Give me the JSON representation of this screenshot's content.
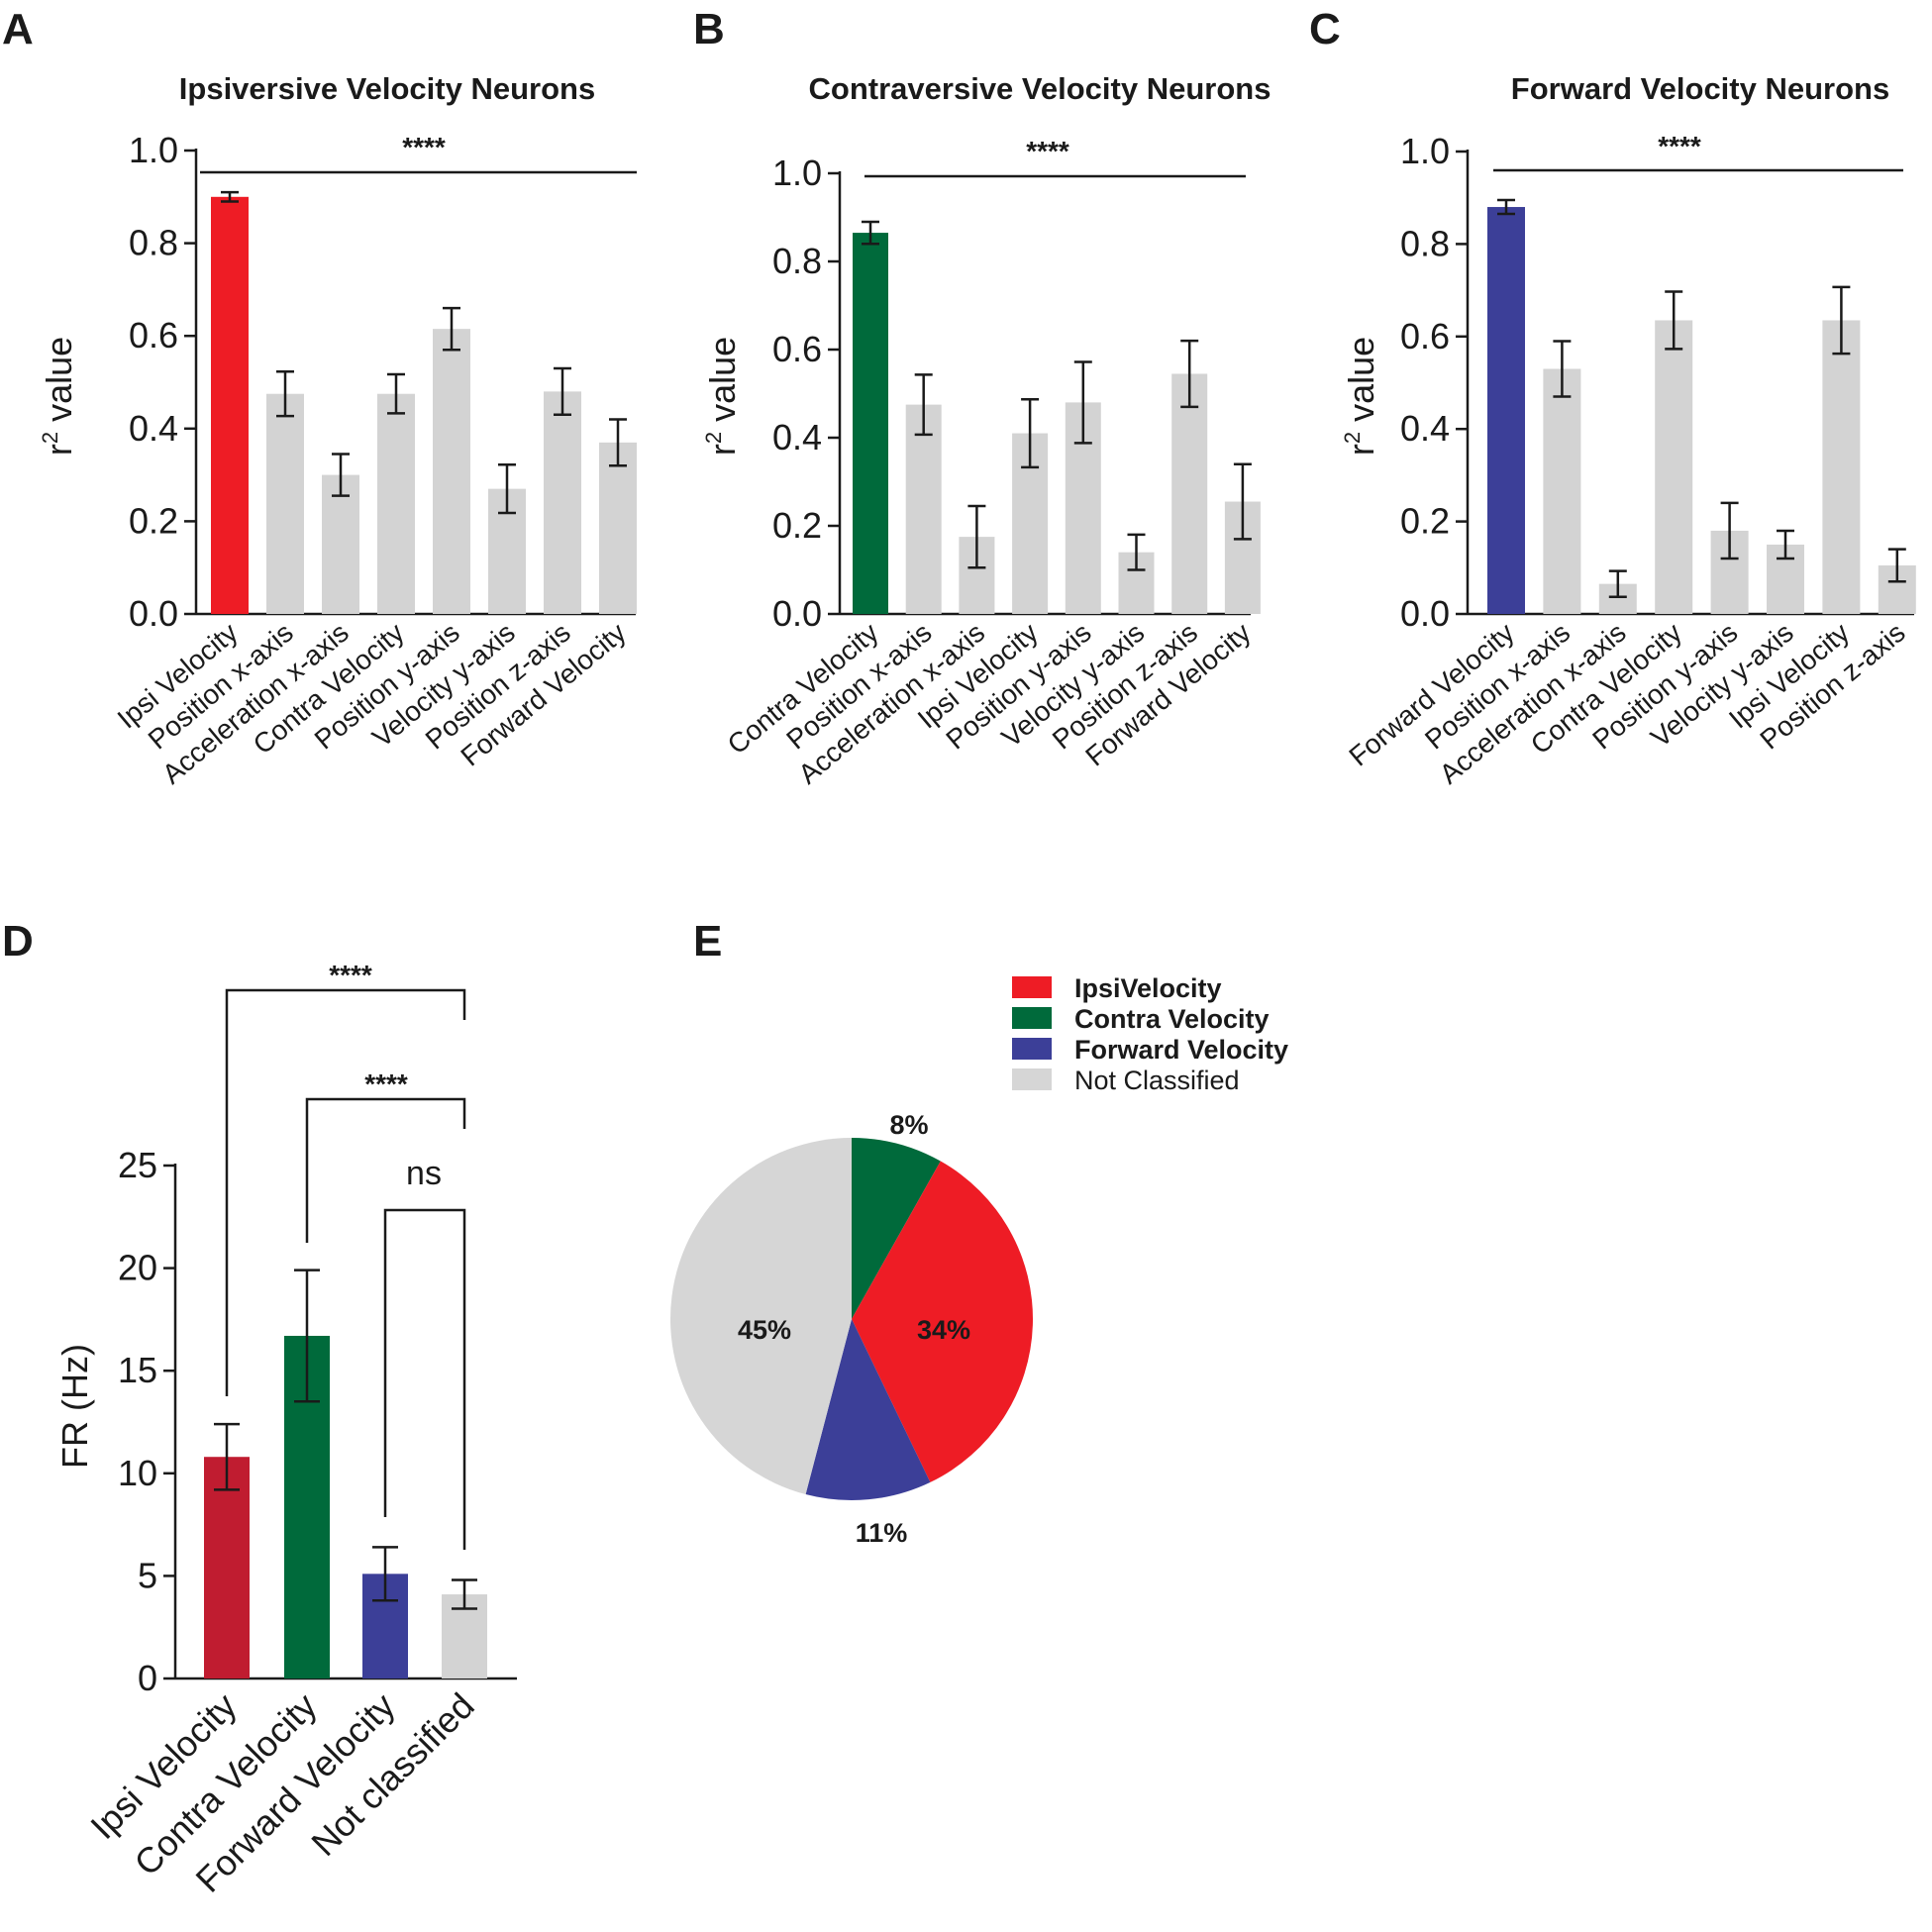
{
  "panels": {
    "A": "A",
    "B": "B",
    "C": "C",
    "D": "D",
    "E": "E"
  },
  "colors": {
    "gray": "#d3d3d3",
    "ipsi": "#ee1c25",
    "contra": "#006a3b",
    "forward": "#3c3f98",
    "ipsi_dark": "#c01c30",
    "pie_gray": "#d6d6d6",
    "pie_red": "#ee1c25"
  },
  "chart_data": [
    {
      "id": "A",
      "type": "bar",
      "title": "Ipsiversive Velocity Neurons",
      "ylabel_base": "r",
      "ylabel_sup": "2",
      "ylabel_rest": " value",
      "ylim": [
        0,
        1.0
      ],
      "yticks": [
        "0.0",
        "0.2",
        "0.4",
        "0.6",
        "0.8",
        "1.0"
      ],
      "categories": [
        "Ipsi Velocity",
        "Position x-axis",
        "Acceleration x-axis",
        "Contra Velocity",
        "Position y-axis",
        "Velocity y-axis",
        "Position z-axis",
        "Forward Velocity"
      ],
      "values": [
        0.9,
        0.475,
        0.3,
        0.475,
        0.615,
        0.27,
        0.48,
        0.37
      ],
      "errors": [
        0.01,
        0.048,
        0.045,
        0.042,
        0.045,
        0.052,
        0.05,
        0.05
      ],
      "highlight_color": "#ee1c25",
      "significance": "****"
    },
    {
      "id": "B",
      "type": "bar",
      "title": "Contraversive Velocity Neurons",
      "ylabel_base": "r",
      "ylabel_sup": "2",
      "ylabel_rest": " value",
      "ylim": [
        0,
        1.0
      ],
      "yticks": [
        "0.0",
        "0.2",
        "0.4",
        "0.6",
        "0.8",
        "1.0"
      ],
      "categories": [
        "Contra Velocity",
        "Position x-axis",
        "Acceleration x-axis",
        "Ipsi Velocity",
        "Position y-axis",
        "Velocity y-axis",
        "Position z-axis",
        "Forward Velocity"
      ],
      "values": [
        0.865,
        0.475,
        0.175,
        0.41,
        0.48,
        0.14,
        0.545,
        0.255
      ],
      "errors": [
        0.025,
        0.068,
        0.07,
        0.077,
        0.092,
        0.04,
        0.075,
        0.085
      ],
      "highlight_color": "#006a3b",
      "significance": "****"
    },
    {
      "id": "C",
      "type": "bar",
      "title": "Forward Velocity Neurons",
      "ylabel_base": "r",
      "ylabel_sup": "2",
      "ylabel_rest": " value",
      "ylim": [
        0,
        1.0
      ],
      "yticks": [
        "0.0",
        "0.2",
        "0.4",
        "0.6",
        "0.8",
        "1.0"
      ],
      "categories": [
        "Forward Velocity",
        "Position x-axis",
        "Acceleration x-axis",
        "Contra Velocity",
        "Position y-axis",
        "Velocity y-axis",
        "Ipsi Velocity",
        "Position z-axis"
      ],
      "values": [
        0.88,
        0.53,
        0.065,
        0.635,
        0.18,
        0.15,
        0.635,
        0.105
      ],
      "errors": [
        0.015,
        0.06,
        0.028,
        0.062,
        0.06,
        0.03,
        0.072,
        0.035
      ],
      "highlight_color": "#3c3f98",
      "significance": "****"
    },
    {
      "id": "D",
      "type": "bar",
      "ylabel": "FR (Hz)",
      "ylim": [
        0,
        25
      ],
      "yticks": [
        "0",
        "5",
        "10",
        "15",
        "20",
        "25"
      ],
      "categories": [
        "Ipsi Velocity",
        "Contra Velocity",
        "Forward Velocity",
        "Not classified"
      ],
      "values": [
        10.8,
        16.7,
        5.1,
        4.1
      ],
      "errors": [
        1.6,
        3.2,
        1.3,
        0.7
      ],
      "bar_colors": [
        "#c01c30",
        "#006a3b",
        "#3c3f98",
        "#d3d3d3"
      ],
      "comparisons": [
        "****",
        "****",
        "ns"
      ]
    },
    {
      "id": "E",
      "type": "pie",
      "slices": [
        {
          "label": "Contra Velocity",
          "value": 8,
          "text": "8%",
          "color": "#006a3b"
        },
        {
          "label": "IpsiVelocity",
          "value": 34,
          "text": "34%",
          "color": "#ee1c25"
        },
        {
          "label": "Forward Velocity",
          "value": 11,
          "text": "11%",
          "color": "#3c3f98"
        },
        {
          "label": "Not Classified",
          "value": 45,
          "text": "45%",
          "color": "#d6d6d6"
        }
      ],
      "legend": [
        {
          "label": "IpsiVelocity",
          "color": "#ee1c25",
          "bold": true
        },
        {
          "label": "Contra Velocity",
          "color": "#006a3b",
          "bold": true
        },
        {
          "label": "Forward Velocity",
          "color": "#3c3f98",
          "bold": true
        },
        {
          "label": "Not Classified",
          "color": "#d6d6d6",
          "bold": false
        }
      ]
    }
  ]
}
